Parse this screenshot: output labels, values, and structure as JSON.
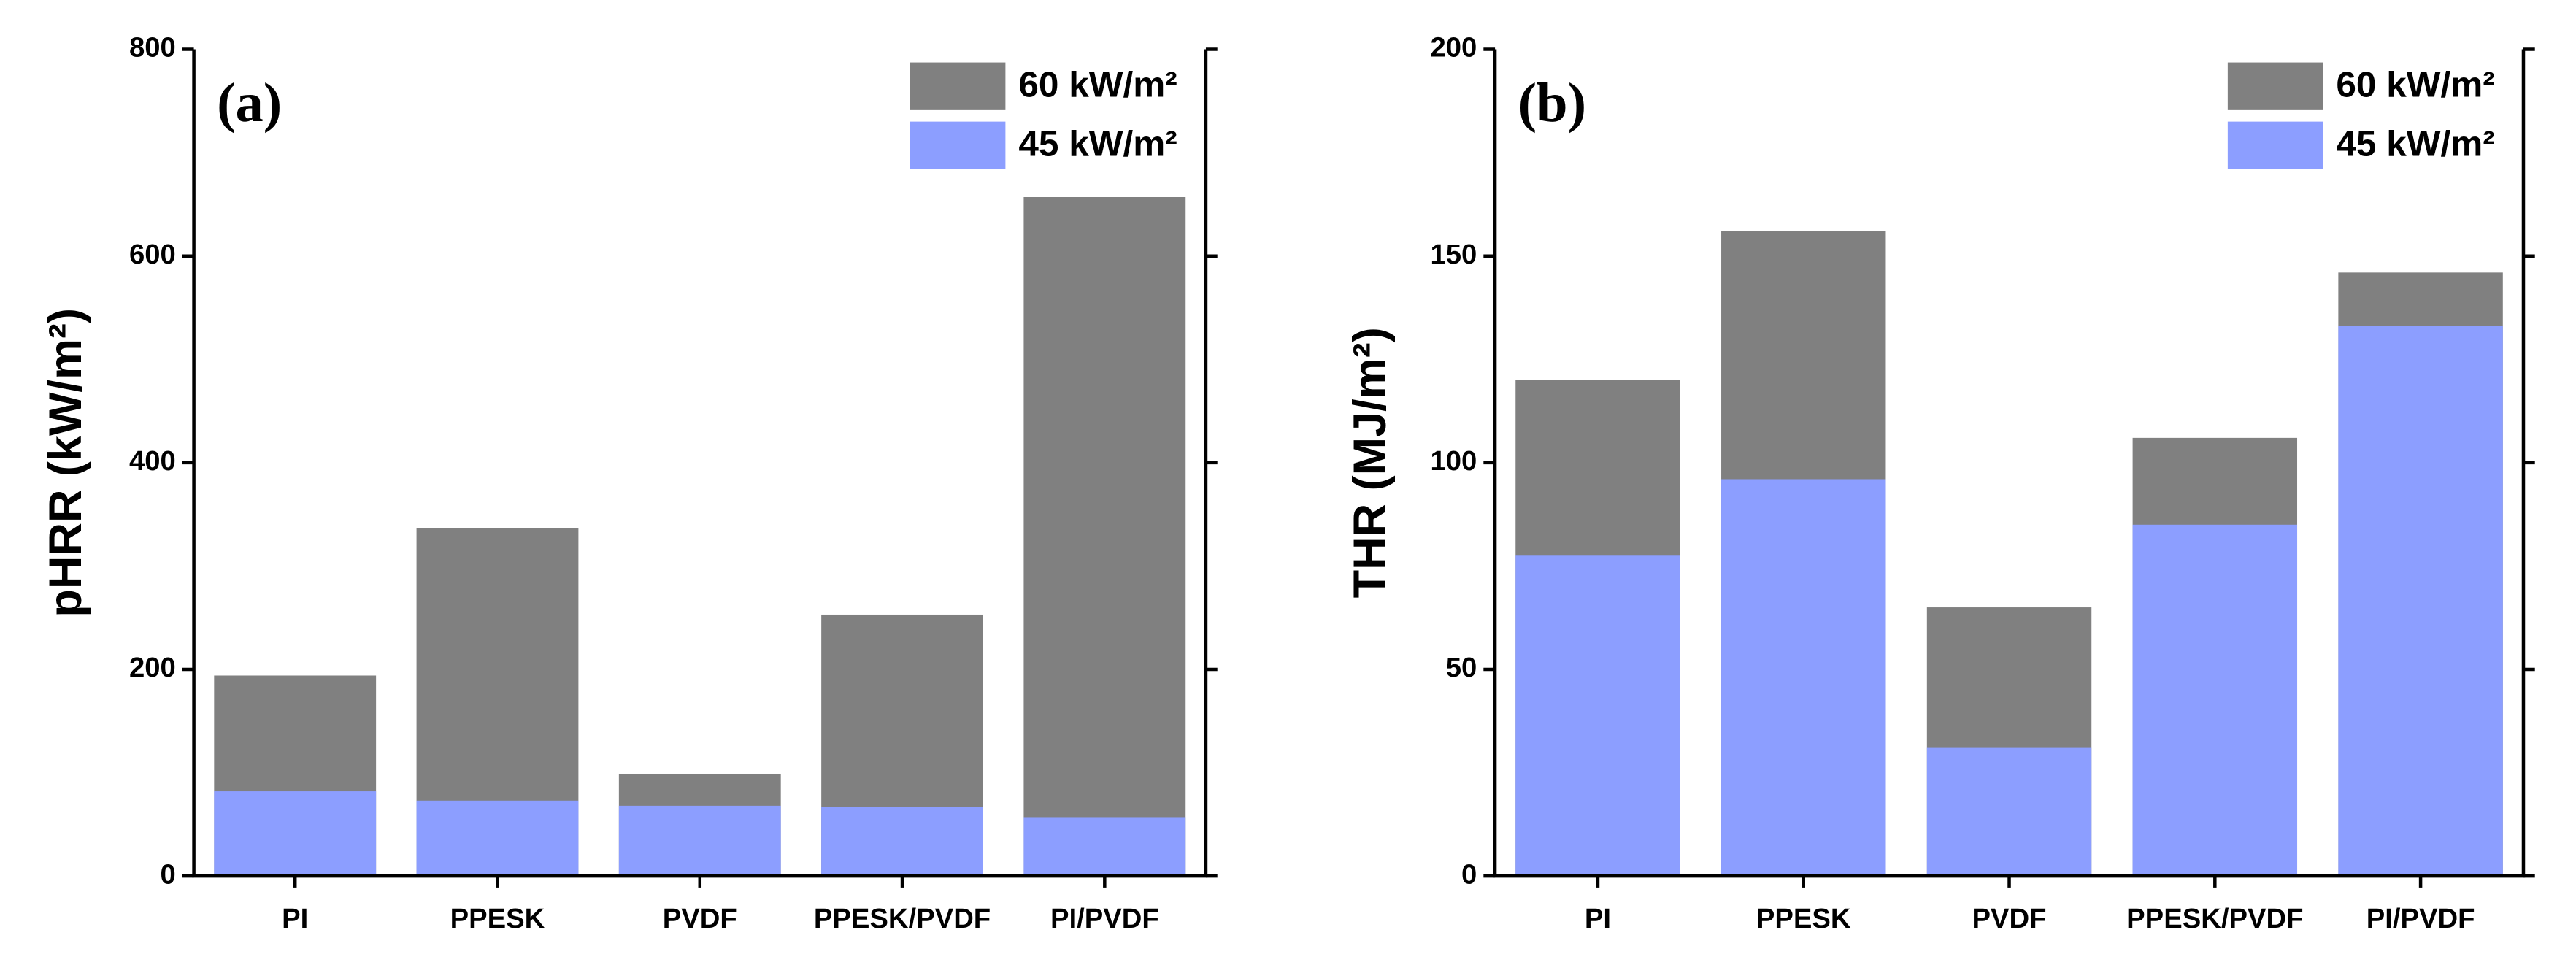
{
  "chart_data": [
    {
      "type": "bar",
      "panel_label": "(a)",
      "ylabel": "pHRR (kW/m²)",
      "categories": [
        "PI",
        "PPESK",
        "PVDF",
        "PPESK/PVDF",
        "PI/PVDF"
      ],
      "series": [
        {
          "name": "60 kW/m²",
          "color": "#808080",
          "values": [
            194,
            337,
            99,
            253,
            657
          ]
        },
        {
          "name": "45 kW/m²",
          "color": "#8c9eff",
          "values": [
            82,
            73,
            68,
            67,
            57
          ]
        }
      ],
      "ylim": [
        0,
        800
      ],
      "yticks": [
        0,
        200,
        400,
        600,
        800
      ],
      "legend": "upper right"
    },
    {
      "type": "bar",
      "panel_label": "(b)",
      "ylabel": "THR (MJ/m²)",
      "categories": [
        "PI",
        "PPESK",
        "PVDF",
        "PPESK/PVDF",
        "PI/PVDF"
      ],
      "series": [
        {
          "name": "60 kW/m²",
          "color": "#808080",
          "values": [
            120,
            156,
            65,
            106,
            146
          ]
        },
        {
          "name": "45 kW/m²",
          "color": "#8c9eff",
          "values": [
            77.5,
            96,
            31,
            85,
            133
          ]
        }
      ],
      "ylim": [
        0,
        200
      ],
      "yticks": [
        0,
        50,
        100,
        150,
        200
      ],
      "legend": "upper right"
    }
  ]
}
